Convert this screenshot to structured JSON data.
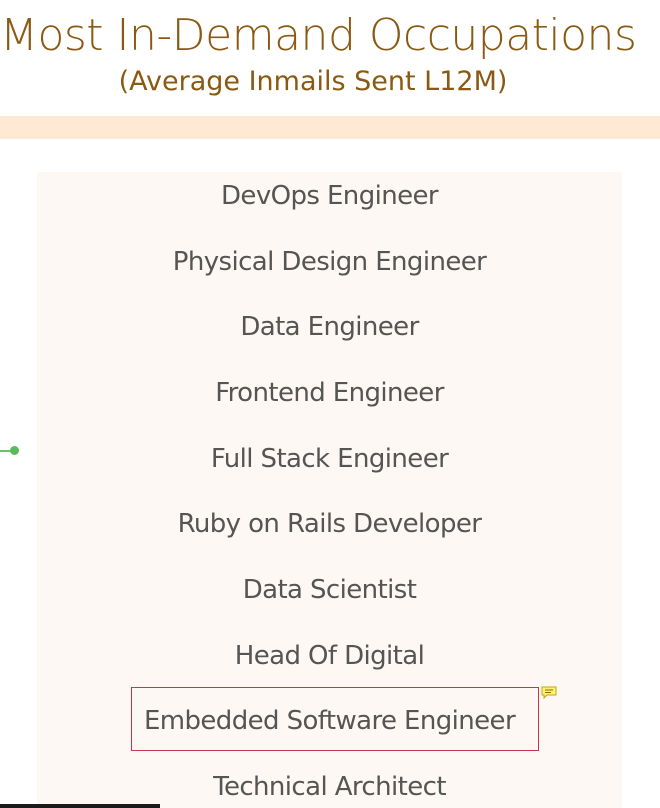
{
  "slide": {
    "title": "Most In-Demand Occupations",
    "subtitle": "(Average Inmails Sent L12M)",
    "occupations": [
      "DevOps Engineer",
      "Physical Design Engineer",
      "Data Engineer",
      "Frontend Engineer",
      "Full Stack Engineer",
      "Ruby on Rails Developer",
      "Data Scientist",
      "Head Of Digital",
      "Embedded Software Engineer",
      "Technical Architect"
    ],
    "highlighted_occupation": "Embedded Software Engineer"
  },
  "colors": {
    "title": "#8a5a12",
    "band": "#fde9d4",
    "panel": "#fdf8f3",
    "highlight_border": "#c8344a",
    "item_text": "#555555"
  },
  "icons": {
    "comment": "comment-icon",
    "connector": "connector-handle-icon"
  }
}
